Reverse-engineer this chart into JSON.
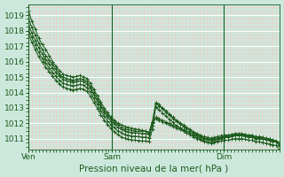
{
  "title": "Pression niveau de la mer( hPa )",
  "xlabel_ticks": [
    "Ven",
    "Sam",
    "Dim"
  ],
  "ylim": [
    1010.3,
    1019.7
  ],
  "yticks": [
    1011,
    1012,
    1013,
    1014,
    1015,
    1016,
    1017,
    1018,
    1019
  ],
  "xlim": [
    0,
    108
  ],
  "ven_x": 0,
  "sam_x": 36,
  "dim_x": 84,
  "bg_color": "#cce8dc",
  "grid_color_major": "#ffffff",
  "grid_color_minor": "#f2c8c8",
  "line_color": "#1e5c1e",
  "series": [
    [
      1019.3,
      1018.6,
      1018.1,
      1017.5,
      1017.1,
      1016.8,
      1016.4,
      1016.0,
      1015.7,
      1015.4,
      1015.2,
      1015.1,
      1015.05,
      1015.0,
      1015.05,
      1015.1,
      1015.0,
      1014.9,
      1014.6,
      1014.2,
      1013.8,
      1013.4,
      1013.0,
      1012.7,
      1012.4,
      1012.2,
      1012.0,
      1011.9,
      1011.8,
      1011.75,
      1011.7,
      1011.65,
      1011.6,
      1011.55,
      1011.5,
      1011.4,
      1012.0,
      1012.3,
      1012.2,
      1012.1,
      1012.0,
      1011.9,
      1011.8,
      1011.7,
      1011.6,
      1011.5,
      1011.4,
      1011.3,
      1011.2,
      1011.1,
      1011.0,
      1010.9,
      1010.8,
      1010.75,
      1010.8,
      1010.9,
      1011.0,
      1011.1,
      1011.2,
      1011.2,
      1011.3,
      1011.3,
      1011.3,
      1011.2,
      1011.2,
      1011.2,
      1011.1,
      1011.1,
      1011.1,
      1011.0,
      1011.0,
      1010.9,
      1010.8,
      1010.75
    ],
    [
      1018.8,
      1018.2,
      1017.7,
      1017.2,
      1016.8,
      1016.4,
      1016.1,
      1015.8,
      1015.5,
      1015.2,
      1015.0,
      1014.9,
      1014.85,
      1014.8,
      1014.85,
      1014.9,
      1014.85,
      1014.7,
      1014.4,
      1014.0,
      1013.6,
      1013.2,
      1012.85,
      1012.55,
      1012.3,
      1012.1,
      1011.9,
      1011.75,
      1011.65,
      1011.6,
      1011.55,
      1011.5,
      1011.5,
      1011.5,
      1011.5,
      1011.4,
      1012.1,
      1012.4,
      1012.3,
      1012.2,
      1012.1,
      1012.0,
      1011.9,
      1011.8,
      1011.7,
      1011.6,
      1011.5,
      1011.4,
      1011.3,
      1011.2,
      1011.1,
      1011.0,
      1010.95,
      1010.9,
      1010.95,
      1011.0,
      1011.05,
      1011.1,
      1011.1,
      1011.15,
      1011.2,
      1011.2,
      1011.2,
      1011.15,
      1011.1,
      1011.1,
      1011.0,
      1011.0,
      1011.0,
      1010.95,
      1010.9,
      1010.85,
      1010.8,
      1010.75
    ],
    [
      1018.4,
      1017.85,
      1017.35,
      1016.9,
      1016.5,
      1016.15,
      1015.85,
      1015.55,
      1015.3,
      1015.05,
      1014.85,
      1014.75,
      1014.7,
      1014.65,
      1014.7,
      1014.75,
      1014.7,
      1014.55,
      1014.25,
      1013.85,
      1013.45,
      1013.05,
      1012.7,
      1012.4,
      1012.15,
      1011.95,
      1011.75,
      1011.62,
      1011.52,
      1011.47,
      1011.42,
      1011.4,
      1011.38,
      1011.35,
      1011.35,
      1011.3,
      1012.1,
      1013.35,
      1013.2,
      1013.0,
      1012.8,
      1012.6,
      1012.4,
      1012.2,
      1012.05,
      1011.9,
      1011.75,
      1011.6,
      1011.45,
      1011.35,
      1011.25,
      1011.15,
      1011.1,
      1011.05,
      1011.1,
      1011.15,
      1011.2,
      1011.25,
      1011.25,
      1011.3,
      1011.35,
      1011.35,
      1011.35,
      1011.3,
      1011.25,
      1011.25,
      1011.15,
      1011.15,
      1011.1,
      1011.05,
      1011.0,
      1010.95,
      1010.9,
      1010.6
    ],
    [
      1018.1,
      1017.55,
      1017.05,
      1016.6,
      1016.2,
      1015.9,
      1015.6,
      1015.3,
      1015.05,
      1014.8,
      1014.62,
      1014.52,
      1014.47,
      1014.42,
      1014.47,
      1014.52,
      1014.47,
      1014.32,
      1014.02,
      1013.62,
      1013.22,
      1012.82,
      1012.47,
      1012.17,
      1011.92,
      1011.72,
      1011.52,
      1011.39,
      1011.29,
      1011.24,
      1011.19,
      1011.17,
      1011.15,
      1011.12,
      1011.12,
      1011.07,
      1011.87,
      1013.32,
      1013.12,
      1012.92,
      1012.72,
      1012.52,
      1012.32,
      1012.12,
      1011.97,
      1011.82,
      1011.67,
      1011.52,
      1011.37,
      1011.27,
      1011.17,
      1011.07,
      1011.02,
      1010.97,
      1011.02,
      1011.07,
      1011.12,
      1011.17,
      1011.17,
      1011.22,
      1011.27,
      1011.27,
      1011.27,
      1011.22,
      1011.17,
      1011.17,
      1011.07,
      1011.07,
      1011.02,
      1010.97,
      1010.92,
      1010.87,
      1010.82,
      1010.52
    ],
    [
      1017.8,
      1017.25,
      1016.75,
      1016.3,
      1015.95,
      1015.65,
      1015.35,
      1015.05,
      1014.8,
      1014.55,
      1014.37,
      1014.27,
      1014.22,
      1014.17,
      1014.22,
      1014.27,
      1014.22,
      1014.07,
      1013.77,
      1013.37,
      1012.97,
      1012.57,
      1012.22,
      1011.92,
      1011.67,
      1011.47,
      1011.27,
      1011.14,
      1011.04,
      1010.99,
      1010.94,
      1010.92,
      1010.9,
      1010.87,
      1010.87,
      1010.82,
      1011.62,
      1013.07,
      1012.87,
      1012.67,
      1012.47,
      1012.27,
      1012.07,
      1011.87,
      1011.72,
      1011.57,
      1011.42,
      1011.27,
      1011.12,
      1011.02,
      1010.92,
      1010.82,
      1010.77,
      1010.72,
      1010.77,
      1010.82,
      1010.87,
      1010.92,
      1010.92,
      1010.97,
      1011.02,
      1011.02,
      1011.02,
      1010.97,
      1010.92,
      1010.92,
      1010.82,
      1010.82,
      1010.77,
      1010.72,
      1010.67,
      1010.62,
      1010.57,
      1010.27
    ]
  ]
}
